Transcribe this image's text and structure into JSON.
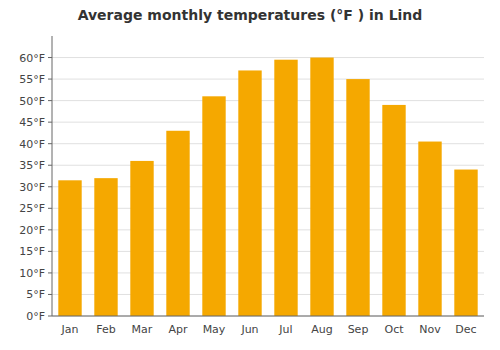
{
  "chart_data": {
    "type": "bar",
    "title": "Average monthly temperatures (°F ) in Lind",
    "categories": [
      "Jan",
      "Feb",
      "Mar",
      "Apr",
      "May",
      "Jun",
      "Jul",
      "Aug",
      "Sep",
      "Oct",
      "Nov",
      "Dec"
    ],
    "values": [
      31.5,
      32.0,
      36.0,
      43.0,
      51.0,
      57.0,
      59.5,
      60.0,
      55.0,
      49.0,
      40.5,
      34.0
    ],
    "color": "#F5A800",
    "ylim": [
      0,
      65
    ],
    "yticks": [
      {
        "value": 0,
        "label": "0°F"
      },
      {
        "value": 5,
        "label": "5°F"
      },
      {
        "value": 10,
        "label": "10°F"
      },
      {
        "value": 15,
        "label": "15°F"
      },
      {
        "value": 20,
        "label": "20°F"
      },
      {
        "value": 25,
        "label": "25°F"
      },
      {
        "value": 30,
        "label": "30°F"
      },
      {
        "value": 35,
        "label": "35°F"
      },
      {
        "value": 40,
        "label": "40°F"
      },
      {
        "value": 45,
        "label": "45°F"
      },
      {
        "value": 50,
        "label": "50°F"
      },
      {
        "value": 55,
        "label": "55°F"
      },
      {
        "value": 60,
        "label": "60°F"
      }
    ],
    "grid": true
  }
}
